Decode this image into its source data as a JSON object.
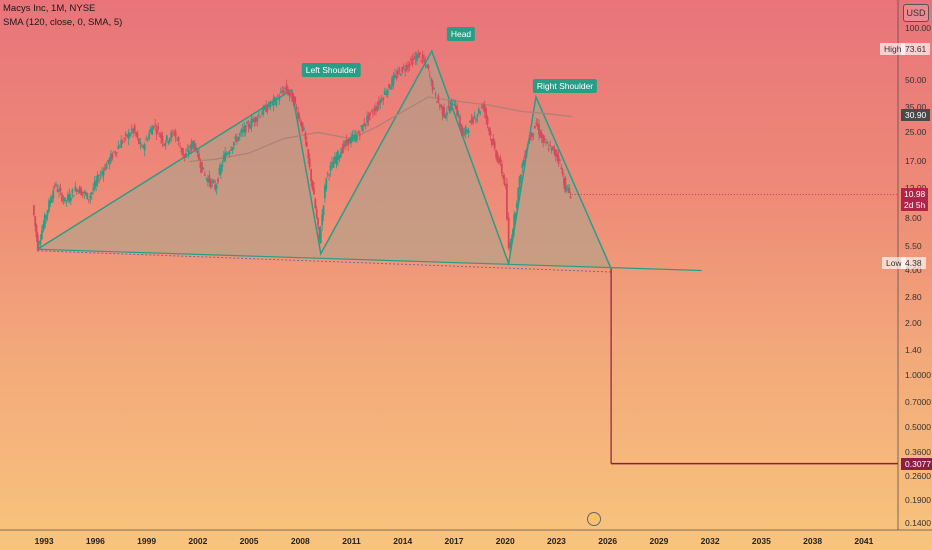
{
  "header": {
    "title": "Macys Inc, 1M, NYSE",
    "indicator": "SMA (120, close, 0, SMA, 5)"
  },
  "currency": "USD",
  "y_axis_ticks": [
    "100.00",
    "50.00",
    "35.00",
    "25.00",
    "17.00",
    "12.00",
    "8.00",
    "5.50",
    "4.00",
    "2.80",
    "2.00",
    "1.40",
    "1.0000",
    "0.7000",
    "0.5000",
    "0.3600",
    "0.2600",
    "0.1900",
    "0.1400"
  ],
  "x_axis_ticks": [
    "1993",
    "1996",
    "1999",
    "2002",
    "2005",
    "2008",
    "2011",
    "2014",
    "2017",
    "2020",
    "2023",
    "2026",
    "2029",
    "2032",
    "2035",
    "2038",
    "2041"
  ],
  "price_badges": {
    "high_label": "High",
    "high_value": "73.61",
    "sma_value": "30.90",
    "last_price": "10.98",
    "countdown": "2d 5h",
    "low_label": "Low",
    "low_value": "4.38",
    "target_value": "0.3077"
  },
  "pattern_labels": {
    "left_shoulder": "Left Shoulder",
    "head": "Head",
    "right_shoulder": "Right Shoulder"
  },
  "colors": {
    "pattern_line": "#2a9d86",
    "pattern_fill": "#a8a48c",
    "sma": "#b08078",
    "target_line": "#8c1d44",
    "candle_up": "#2a9d86",
    "candle_down": "#d64a5c"
  },
  "chart_data": {
    "type": "candlestick",
    "scale": "log",
    "xlim": [
      1991.0,
      2043.0
    ],
    "ylim": [
      0.14,
      100
    ],
    "price_path": [
      [
        1992.4,
        9.5
      ],
      [
        1992.7,
        5.5
      ],
      [
        1993.2,
        8.5
      ],
      [
        1993.7,
        12.5
      ],
      [
        1994.3,
        10
      ],
      [
        1995,
        12
      ],
      [
        1995.7,
        10.5
      ],
      [
        1996.3,
        14
      ],
      [
        1997,
        18
      ],
      [
        1997.6,
        22
      ],
      [
        1998.3,
        26
      ],
      [
        1998.8,
        20
      ],
      [
        1999.5,
        28
      ],
      [
        2000.1,
        22
      ],
      [
        2000.7,
        25
      ],
      [
        2001.3,
        18
      ],
      [
        2001.8,
        22
      ],
      [
        2002.5,
        14
      ],
      [
        2003.1,
        12
      ],
      [
        2003.6,
        18
      ],
      [
        2004.2,
        22
      ],
      [
        2004.8,
        26
      ],
      [
        2005.4,
        30
      ],
      [
        2006.0,
        34
      ],
      [
        2006.6,
        38
      ],
      [
        2007.2,
        45
      ],
      [
        2007.7,
        38
      ],
      [
        2008.3,
        25
      ],
      [
        2008.8,
        12
      ],
      [
        2009.2,
        6.0
      ],
      [
        2009.6,
        14
      ],
      [
        2010.2,
        18
      ],
      [
        2010.8,
        22
      ],
      [
        2011.4,
        24
      ],
      [
        2012.0,
        30
      ],
      [
        2012.6,
        36
      ],
      [
        2013.2,
        45
      ],
      [
        2013.8,
        55
      ],
      [
        2014.4,
        62
      ],
      [
        2015.0,
        70
      ],
      [
        2015.5,
        60
      ],
      [
        2016.0,
        40
      ],
      [
        2016.5,
        32
      ],
      [
        2017.1,
        38
      ],
      [
        2017.6,
        24
      ],
      [
        2018.2,
        30
      ],
      [
        2018.8,
        36
      ],
      [
        2019.3,
        22
      ],
      [
        2019.8,
        16
      ],
      [
        2020.1,
        12
      ],
      [
        2020.3,
        5.2
      ],
      [
        2020.6,
        8
      ],
      [
        2021.0,
        15
      ],
      [
        2021.4,
        22
      ],
      [
        2021.9,
        28
      ],
      [
        2022.3,
        22
      ],
      [
        2022.8,
        20
      ],
      [
        2023.2,
        18
      ],
      [
        2023.6,
        12
      ],
      [
        2023.9,
        10.98
      ]
    ],
    "sma_path": [
      [
        2001.5,
        17
      ],
      [
        2003,
        17.5
      ],
      [
        2005,
        19
      ],
      [
        2007,
        23
      ],
      [
        2009,
        25
      ],
      [
        2011,
        23
      ],
      [
        2012.5,
        27
      ],
      [
        2014,
        33
      ],
      [
        2015.5,
        40
      ],
      [
        2017,
        38
      ],
      [
        2019,
        36
      ],
      [
        2021,
        33
      ],
      [
        2022.5,
        32
      ],
      [
        2023.9,
        30.9
      ]
    ],
    "pattern_points": [
      [
        1992.6,
        5.3
      ],
      [
        2007.5,
        44
      ],
      [
        2009.2,
        5.0
      ],
      [
        2015.7,
        73.61
      ],
      [
        2020.2,
        4.38
      ],
      [
        2021.8,
        40
      ],
      [
        2026.2,
        4.1
      ]
    ],
    "neckline": [
      [
        1992.6,
        5.3
      ],
      [
        2031.5,
        4.0
      ]
    ],
    "projection": {
      "start": [
        2026.2,
        4.1
      ],
      "target": 0.3077,
      "target_end_x": 2043.0
    },
    "high": 73.61,
    "low": 4.38,
    "last": 10.98,
    "sma_last": 30.9,
    "target": 0.3077
  }
}
